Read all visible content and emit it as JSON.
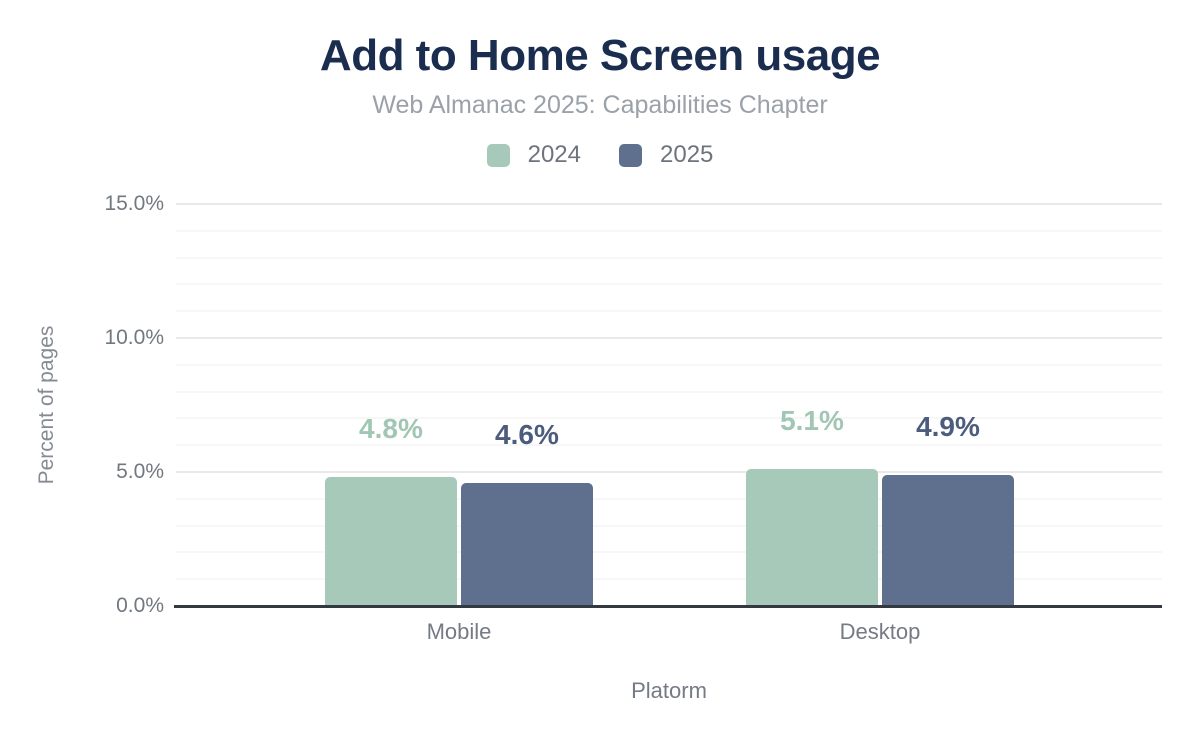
{
  "chart_data": {
    "type": "bar",
    "title": "Add to Home Screen usage",
    "subtitle": "Web Almanac 2025: Capabilities Chapter",
    "categories": [
      "Mobile",
      "Desktop"
    ],
    "series": [
      {
        "name": "2024",
        "color": "#a7c9ba",
        "label_color": "#a2c6b4",
        "values": [
          4.8,
          5.1
        ]
      },
      {
        "name": "2025",
        "color": "#5e708e",
        "label_color": "#4c5c7c",
        "values": [
          4.6,
          4.9
        ]
      }
    ],
    "value_labels": {
      "format": "percent_one_decimal",
      "text": [
        [
          "4.8%",
          "5.1%"
        ],
        [
          "4.6%",
          "4.9%"
        ]
      ]
    },
    "xlabel": "Platorm",
    "ylabel": "Percent of pages",
    "ylim": [
      0,
      15
    ],
    "yticks": [
      0,
      5,
      10,
      15
    ],
    "ytick_labels": [
      "0.0%",
      "5.0%",
      "10.0%",
      "15.0%"
    ],
    "minor_grid_step": 1,
    "grid": true,
    "legend_position": "top-center"
  },
  "colors": {
    "background": "#ffffff",
    "title": "#1b2d4f",
    "subtitle": "#9aa1a9",
    "axis_text": "#71787f",
    "category_text": "#757b84",
    "axis_line": "#343840",
    "grid_major": "#e9e9e9",
    "grid_minor": "#f7f7f7",
    "legend_text": "#6e747d"
  }
}
